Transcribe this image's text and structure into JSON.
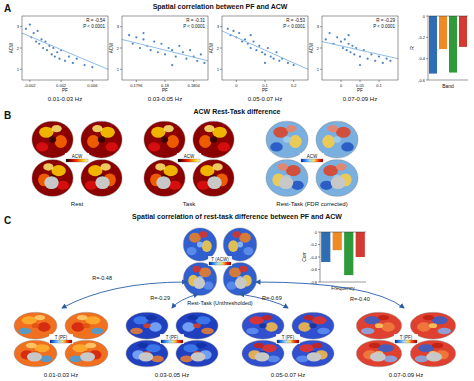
{
  "chart_data": [
    {
      "type": "scatter",
      "title": "0.01-0.03 Hz",
      "x_label": "PF",
      "y_label": "ACW",
      "annotation": [
        "R = -0.54",
        "P < 0.0001"
      ],
      "color": "#2f6db5",
      "x": [
        -0.0025,
        -0.002,
        -0.0018,
        -0.0015,
        -0.0012,
        -0.001,
        -0.0008,
        -0.0005,
        -0.0003,
        0,
        0.0002,
        0.0005,
        0.0008,
        0.001,
        0.0012,
        0.0015,
        0.0018,
        0.002,
        0.0025,
        0.003,
        0.0035,
        0.004,
        0.005,
        0.006
      ],
      "y": [
        2.9,
        3.1,
        2.5,
        2.7,
        2.3,
        2.8,
        2.2,
        2.4,
        2.0,
        2.3,
        1.9,
        2.1,
        1.7,
        2.0,
        1.6,
        1.8,
        1.5,
        1.9,
        1.4,
        1.6,
        1.3,
        1.5,
        1.2,
        1.1
      ],
      "fit_line": {
        "x": [
          -0.003,
          0.008
        ],
        "y": [
          2.7,
          1.0
        ]
      },
      "xlim": [
        -0.003,
        0.008
      ],
      "ylim": [
        0.5,
        3.5
      ],
      "xticks": [
        -0.002,
        0.002,
        0.006
      ],
      "yticks": [
        1,
        2,
        3
      ]
    },
    {
      "type": "scatter",
      "title": "0.03-0.05 Hz",
      "x_label": "PF",
      "y_label": "ACW",
      "annotation": [
        "R = -0.31",
        "P < 0.0001"
      ],
      "color": "#2f6db5",
      "x": [
        0.1795,
        0.17955,
        0.1796,
        0.17965,
        0.1797,
        0.17975,
        0.1798,
        0.17985,
        0.1799,
        0.17995,
        0.18,
        0.18005,
        0.1801,
        0.18015,
        0.1802,
        0.18025,
        0.1803,
        0.18035,
        0.1804,
        0.18045,
        0.1805,
        0.18055,
        0.1797,
        0.1801
      ],
      "y": [
        2.6,
        2.2,
        2.5,
        2.0,
        2.4,
        2.1,
        1.9,
        2.3,
        1.8,
        2.2,
        1.7,
        2.0,
        1.9,
        1.6,
        2.1,
        1.8,
        1.5,
        1.9,
        1.6,
        1.4,
        1.7,
        1.3,
        2.7,
        1.2
      ],
      "fit_line": {
        "x": [
          0.1794,
          0.1806
        ],
        "y": [
          2.4,
          1.4
        ]
      },
      "xlim": [
        0.1794,
        0.1806
      ],
      "ylim": [
        0.5,
        3.5
      ],
      "xticks": [
        0.1796,
        0.18,
        0.1804
      ],
      "yticks": [
        1,
        2,
        3
      ]
    },
    {
      "type": "scatter",
      "title": "0.05-0.07 Hz",
      "x_label": "PF",
      "y_label": "ACW",
      "annotation": [
        "R = -0.53",
        "P < 0.0001"
      ],
      "color": "#2f6db5",
      "x": [
        -0.03,
        -0.02,
        -0.01,
        0,
        0.01,
        0.02,
        0.03,
        0.04,
        0.05,
        0.06,
        0.07,
        0.08,
        0.09,
        0.1,
        0.11,
        0.12,
        0.13,
        0.14,
        0.15,
        0.16,
        0.18,
        0.2,
        0.05,
        0.1
      ],
      "y": [
        2.9,
        2.6,
        2.8,
        2.5,
        2.7,
        2.3,
        2.4,
        2.2,
        2.0,
        2.3,
        1.9,
        2.1,
        1.8,
        1.7,
        2.0,
        1.6,
        1.5,
        1.8,
        1.4,
        1.5,
        1.3,
        1.2,
        2.6,
        1.3
      ],
      "fit_line": {
        "x": [
          -0.05,
          0.25
        ],
        "y": [
          2.8,
          1.0
        ]
      },
      "xlim": [
        -0.05,
        0.25
      ],
      "ylim": [
        0.5,
        3.5
      ],
      "xticks": [
        0,
        0.1,
        0.2
      ],
      "yticks": [
        1,
        2,
        3
      ]
    },
    {
      "type": "scatter",
      "title": "0.07-0.09 Hz",
      "x_label": "PF",
      "y_label": "ACW",
      "annotation": [
        "R = -0.29",
        "P < 0.0001"
      ],
      "color": "#2f6db5",
      "x": [
        -0.04,
        -0.03,
        -0.02,
        -0.01,
        0,
        0.005,
        0.01,
        0.015,
        0.02,
        0.025,
        0.03,
        0.035,
        0.04,
        0.05,
        0.06,
        0.07,
        0.08,
        0.09,
        0.1,
        0.11,
        0.12,
        0.02,
        0.05,
        0.13
      ],
      "y": [
        2.4,
        2.7,
        2.2,
        2.5,
        2.3,
        2.0,
        2.4,
        1.9,
        2.2,
        1.8,
        2.1,
        1.7,
        2.0,
        1.6,
        1.9,
        1.5,
        1.7,
        1.4,
        1.6,
        1.3,
        1.5,
        2.6,
        1.2,
        1.4
      ],
      "fit_line": {
        "x": [
          -0.05,
          0.15
        ],
        "y": [
          2.3,
          1.5
        ]
      },
      "xlim": [
        -0.05,
        0.15
      ],
      "ylim": [
        0.5,
        3.5
      ],
      "xticks": [
        0,
        0.05,
        0.1
      ],
      "yticks": [
        1,
        2,
        3
      ]
    },
    {
      "type": "bar",
      "x_label": "Band",
      "y_label": "R",
      "categories": [
        null,
        null,
        null,
        null
      ],
      "values": [
        -0.54,
        -0.31,
        -0.53,
        -0.29
      ],
      "colors": [
        "#2f6db5",
        "#f08a24",
        "#2e9a3a",
        "#d23a32"
      ],
      "ylim": [
        -0.6,
        0
      ],
      "yticks": [
        -0.6,
        -0.4,
        -0.2,
        0
      ]
    },
    {
      "type": "bar",
      "x_label": "Frequency",
      "y_label": "Corr",
      "categories": [
        null,
        null,
        null,
        null
      ],
      "values": [
        -0.48,
        -0.29,
        -0.69,
        -0.4
      ],
      "colors": [
        "#2f6db5",
        "#f08a24",
        "#2e9a3a",
        "#d23a32"
      ],
      "ylim": [
        -0.8,
        0
      ],
      "yticks": [
        -0.8,
        -0.6,
        -0.4,
        -0.2,
        0
      ]
    }
  ],
  "figure": {
    "panel_a": {
      "label": "A",
      "title": "Spatial correlation between PF and ACW"
    },
    "panel_b": {
      "label": "B",
      "title": "ACW Rest-Task difference",
      "maps": [
        {
          "label": "Rest",
          "colorbar": "ACW"
        },
        {
          "label": "Task",
          "colorbar": "ACW"
        },
        {
          "label": "Rest-Task (FDR corrected)",
          "colorbar": "ACW"
        }
      ]
    },
    "panel_c": {
      "label": "C",
      "title": "Spatial correlation of rest-task difference between PF and ACW",
      "center_map": {
        "label": "Rest-Task (Unthresholded)",
        "colorbar": "T (ACW)"
      },
      "band_maps": [
        {
          "label": "0.01-0.03 Hz",
          "colorbar": "T (PF)",
          "correlation": "R=-0.48"
        },
        {
          "label": "0.03-0.05 Hz",
          "colorbar": "T (PF)",
          "correlation": "R=-0.29"
        },
        {
          "label": "0.05-0.07 Hz",
          "colorbar": "T (PF)",
          "correlation": "R=-0.69"
        },
        {
          "label": "0.07-0.09 Hz",
          "colorbar": "T (PF)",
          "correlation": "R=-0.40"
        }
      ]
    }
  }
}
